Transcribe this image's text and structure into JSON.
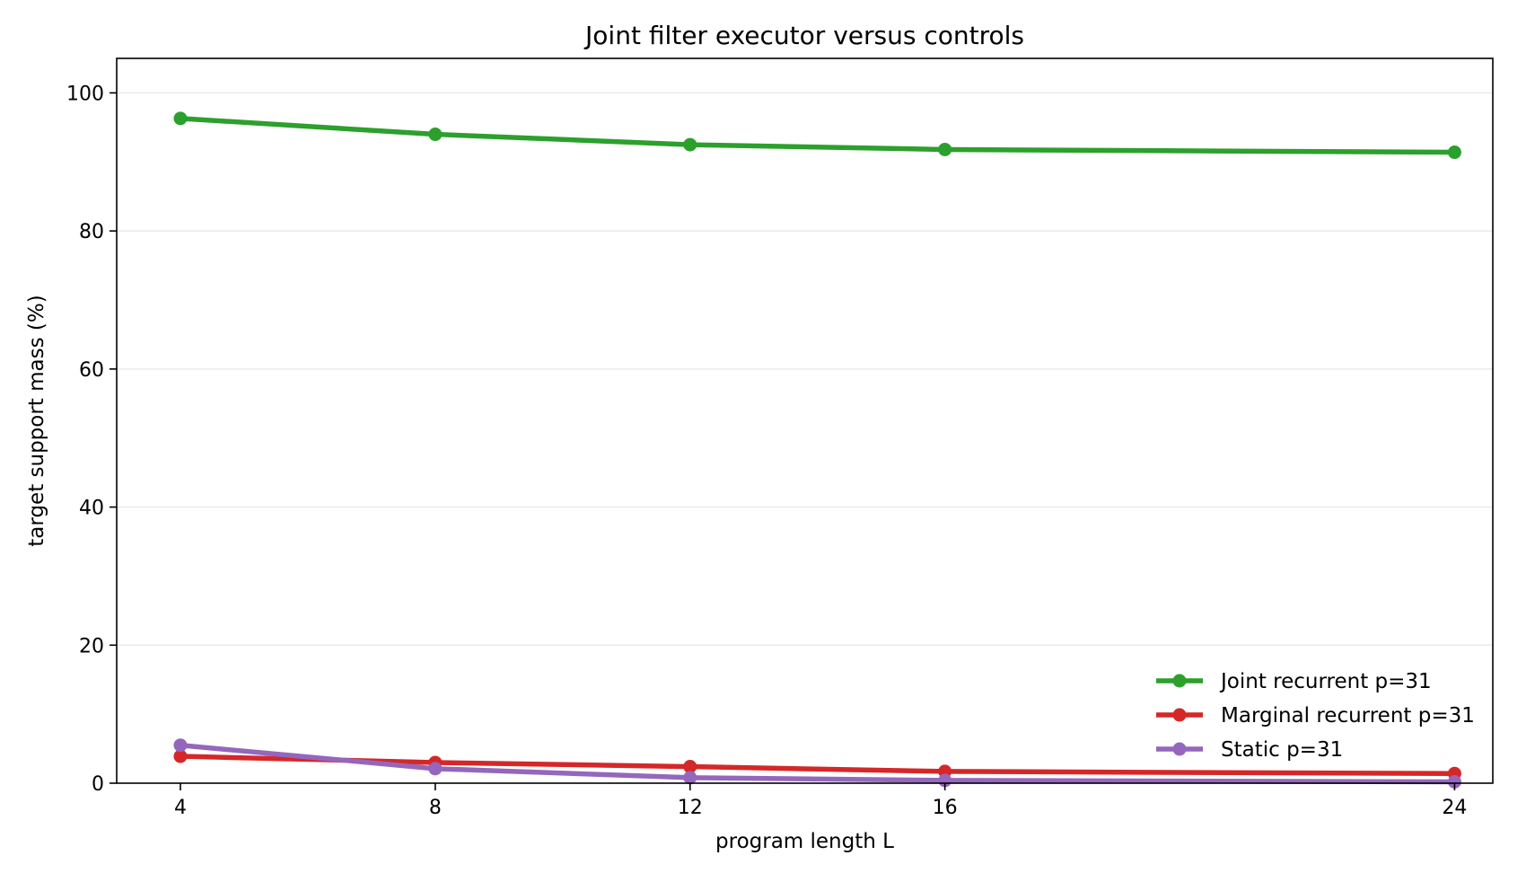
{
  "chart_data": {
    "type": "line",
    "title": "Joint filter executor versus controls",
    "xlabel": "program length L",
    "ylabel": "target support mass (%)",
    "x": [
      4,
      8,
      12,
      16,
      24
    ],
    "xticks": [
      4,
      8,
      12,
      16,
      24
    ],
    "yticks": [
      0,
      20,
      40,
      60,
      80,
      100
    ],
    "xlim": [
      3,
      24.6
    ],
    "ylim": [
      0,
      105
    ],
    "grid": "horizontal",
    "legend": "bottom-right",
    "series": [
      {
        "name": "Joint recurrent p=31",
        "color": "#2ca02c",
        "values": [
          96.3,
          94.0,
          92.5,
          91.8,
          91.4
        ]
      },
      {
        "name": "Marginal recurrent p=31",
        "color": "#d62728",
        "values": [
          3.9,
          3.0,
          2.4,
          1.7,
          1.4
        ]
      },
      {
        "name": "Static p=31",
        "color": "#9467bd",
        "values": [
          5.5,
          2.1,
          0.8,
          0.4,
          0.2
        ]
      }
    ]
  }
}
